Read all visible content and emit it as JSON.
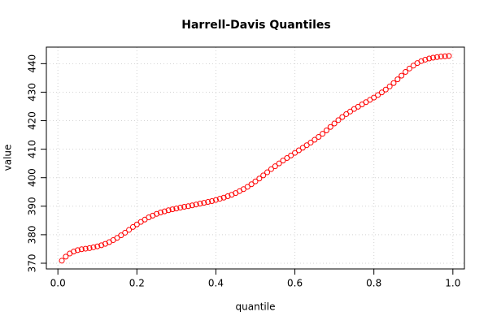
{
  "chart_data": {
    "type": "scatter",
    "title": "Harrell-Davis Quantiles",
    "x_label": "quantile",
    "y_label": "value",
    "x": [
      0.01,
      0.02,
      0.03,
      0.04,
      0.05,
      0.06,
      0.07,
      0.08,
      0.09,
      0.1,
      0.11,
      0.12,
      0.13,
      0.14,
      0.15,
      0.16,
      0.17,
      0.18,
      0.19,
      0.2,
      0.21,
      0.22,
      0.23,
      0.24,
      0.25,
      0.26,
      0.27,
      0.28,
      0.29,
      0.3,
      0.31,
      0.32,
      0.33,
      0.34,
      0.35,
      0.36,
      0.37,
      0.38,
      0.39,
      0.4,
      0.41,
      0.42,
      0.43,
      0.44,
      0.45,
      0.46,
      0.47,
      0.48,
      0.49,
      0.5,
      0.51,
      0.52,
      0.53,
      0.54,
      0.55,
      0.56,
      0.57,
      0.58,
      0.59,
      0.6,
      0.61,
      0.62,
      0.63,
      0.64,
      0.65,
      0.66,
      0.67,
      0.68,
      0.69,
      0.7,
      0.71,
      0.72,
      0.73,
      0.74,
      0.75,
      0.76,
      0.77,
      0.78,
      0.79,
      0.8,
      0.81,
      0.82,
      0.83,
      0.84,
      0.85,
      0.86,
      0.87,
      0.88,
      0.89,
      0.9,
      0.91,
      0.92,
      0.93,
      0.94,
      0.95,
      0.96,
      0.97,
      0.98,
      0.99
    ],
    "series": [
      {
        "color": "#ff0000",
        "values": [
          370.9,
          372.3,
          373.4,
          374.1,
          374.6,
          374.9,
          375.1,
          375.3,
          375.6,
          375.9,
          376.3,
          376.8,
          377.4,
          378.1,
          378.9,
          379.8,
          380.7,
          381.7,
          382.7,
          383.6,
          384.5,
          385.3,
          386.1,
          386.7,
          387.3,
          387.8,
          388.2,
          388.6,
          388.9,
          389.2,
          389.5,
          389.8,
          390.0,
          390.3,
          390.6,
          390.9,
          391.2,
          391.5,
          391.8,
          392.2,
          392.6,
          393.0,
          393.5,
          394.0,
          394.6,
          395.3,
          396.0,
          396.8,
          397.7,
          398.7,
          399.7,
          400.8,
          401.9,
          403.0,
          404.0,
          405.0,
          406.0,
          406.9,
          407.8,
          408.7,
          409.6,
          410.5,
          411.4,
          412.3,
          413.3,
          414.3,
          415.4,
          416.6,
          417.8,
          419.0,
          420.2,
          421.3,
          422.3,
          423.2,
          424.1,
          424.9,
          425.7,
          426.5,
          427.3,
          428.1,
          429.0,
          429.9,
          430.9,
          432.0,
          433.2,
          434.5,
          435.8,
          437.1,
          438.3,
          439.3,
          440.2,
          440.9,
          441.4,
          441.8,
          442.1,
          442.3,
          442.5,
          442.6,
          442.7
        ]
      }
    ],
    "xlim": [
      -0.0292,
      1.0292
    ],
    "ylim": [
      368,
      445.8
    ],
    "xticks": [
      {
        "value": 0,
        "label": "0.0"
      },
      0.2,
      0.4,
      0.6,
      0.8,
      {
        "value": 1,
        "label": "1.0"
      }
    ],
    "yticks": [
      370,
      380,
      390,
      400,
      410,
      420,
      430,
      440
    ],
    "grid": true
  }
}
